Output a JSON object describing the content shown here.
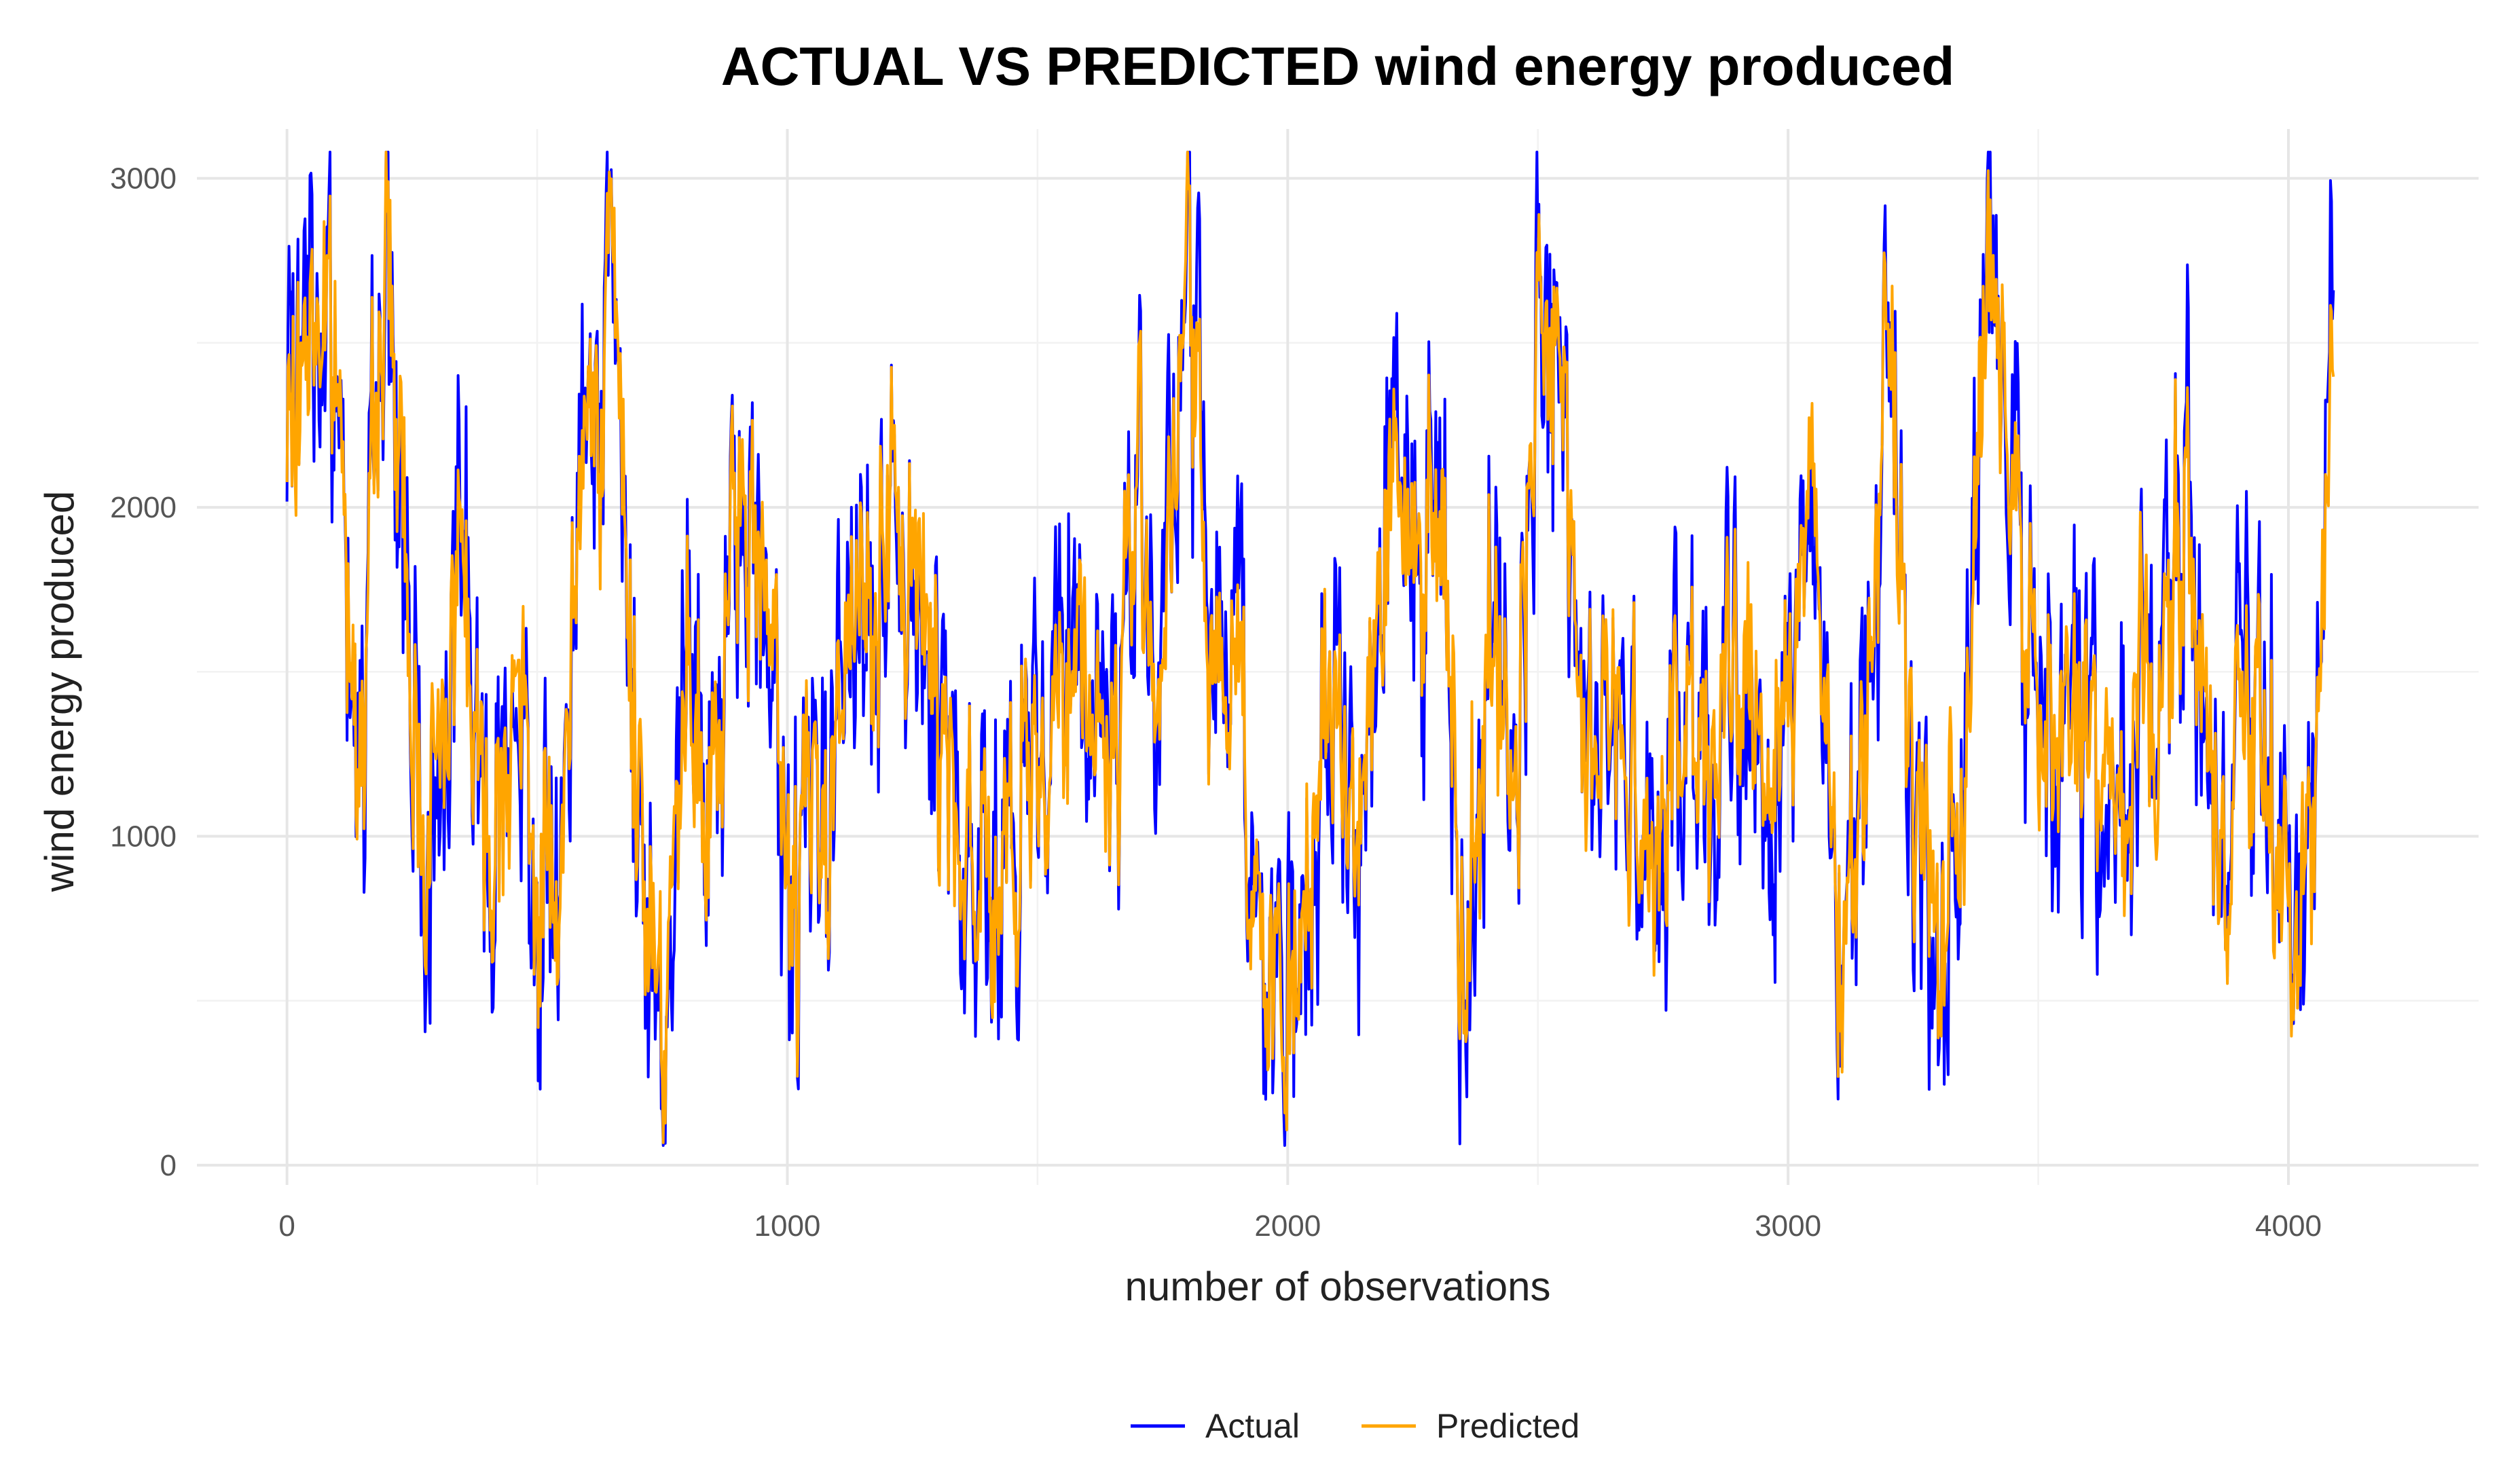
{
  "chart_data": {
    "type": "line",
    "title": "ACTUAL VS PREDICTED wind energy produced",
    "xlabel": "number of observations",
    "ylabel": "wind energy produced",
    "xlim": [
      -180,
      4380
    ],
    "ylim": [
      -60,
      3150
    ],
    "x_ticks": [
      0,
      1000,
      2000,
      3000,
      4000
    ],
    "x_tick_labels": [
      "0",
      "1000",
      "2000",
      "3000",
      "4000"
    ],
    "y_ticks": [
      0,
      1000,
      2000,
      3000
    ],
    "y_tick_labels": [
      "0",
      "1000",
      "2000",
      "3000"
    ],
    "grid": true,
    "legend_position": "bottom",
    "n_points": 4090,
    "series": [
      {
        "name": "Actual",
        "color": "#0000ff",
        "x": [
          0,
          50,
          100,
          150,
          200,
          250,
          300,
          350,
          400,
          450,
          500,
          550,
          600,
          650,
          700,
          750,
          800,
          850,
          900,
          950,
          1000,
          1050,
          1100,
          1150,
          1200,
          1250,
          1300,
          1350,
          1400,
          1450,
          1500,
          1550,
          1600,
          1650,
          1700,
          1750,
          1800,
          1850,
          1900,
          1950,
          2000,
          2050,
          2100,
          2150,
          2200,
          2250,
          2300,
          2350,
          2400,
          2450,
          2500,
          2550,
          2600,
          2650,
          2700,
          2750,
          2800,
          2850,
          2900,
          2950,
          3000,
          3050,
          3100,
          3150,
          3200,
          3250,
          3300,
          3350,
          3400,
          3450,
          3500,
          3550,
          3600,
          3650,
          3700,
          3750,
          3800,
          3850,
          3900,
          3950,
          4000,
          4050,
          4090
        ],
        "values": [
          2050,
          2650,
          2350,
          1300,
          2900,
          1300,
          1050,
          2050,
          900,
          1500,
          900,
          950,
          2300,
          2700,
          1100,
          600,
          1300,
          1050,
          1900,
          2000,
          700,
          1000,
          1400,
          1700,
          1900,
          1800,
          1500,
          1000,
          900,
          800,
          1300,
          1600,
          1500,
          1200,
          2000,
          1500,
          2800,
          1400,
          1700,
          500,
          300,
          1100,
          1400,
          1100,
          2100,
          1900,
          2200,
          600,
          1700,
          1000,
          2700,
          2300,
          1000,
          1500,
          1100,
          1000,
          1400,
          1200,
          1500,
          1300,
          1500,
          2000,
          700,
          1200,
          2600,
          1100,
          600,
          1200,
          2700,
          2100,
          1300,
          1200,
          1500,
          900,
          1300,
          1500,
          2000,
          900,
          1400,
          1300,
          700,
          900,
          2600
        ]
      },
      {
        "name": "Predicted",
        "color": "#ffa500",
        "x": [
          0,
          50,
          100,
          150,
          200,
          250,
          300,
          350,
          400,
          450,
          500,
          550,
          600,
          650,
          700,
          750,
          800,
          850,
          900,
          950,
          1000,
          1050,
          1100,
          1150,
          1200,
          1250,
          1300,
          1350,
          1400,
          1450,
          1500,
          1550,
          1600,
          1650,
          1700,
          1750,
          1800,
          1850,
          1900,
          1950,
          2000,
          2050,
          2100,
          2150,
          2200,
          2250,
          2300,
          2350,
          2400,
          2450,
          2500,
          2550,
          2600,
          2650,
          2700,
          2750,
          2800,
          2850,
          2900,
          2950,
          3000,
          3050,
          3100,
          3150,
          3200,
          3250,
          3300,
          3350,
          3400,
          3450,
          3500,
          3550,
          3600,
          3650,
          3700,
          3750,
          3800,
          3850,
          3900,
          3950,
          4000,
          4050,
          4090
        ],
        "values": [
          2150,
          2550,
          2300,
          1400,
          2750,
          1350,
          1100,
          1950,
          1000,
          1450,
          950,
          1000,
          2200,
          2600,
          1200,
          650,
          1250,
          1100,
          1850,
          1950,
          800,
          1050,
          1350,
          1650,
          1850,
          1750,
          1450,
          1050,
          950,
          850,
          1250,
          1550,
          1500,
          1250,
          1950,
          1500,
          2650,
          1450,
          1650,
          600,
          400,
          1150,
          1350,
          1150,
          2000,
          1850,
          2150,
          700,
          1650,
          1050,
          2600,
          2250,
          1050,
          1450,
          1150,
          1050,
          1350,
          1250,
          1450,
          1300,
          1450,
          1900,
          800,
          1250,
          2500,
          1150,
          700,
          1250,
          2600,
          2050,
          1300,
          1250,
          1450,
          1000,
          1300,
          1450,
          1900,
          1000,
          1350,
          1300,
          800,
          950,
          2400
        ]
      }
    ]
  }
}
